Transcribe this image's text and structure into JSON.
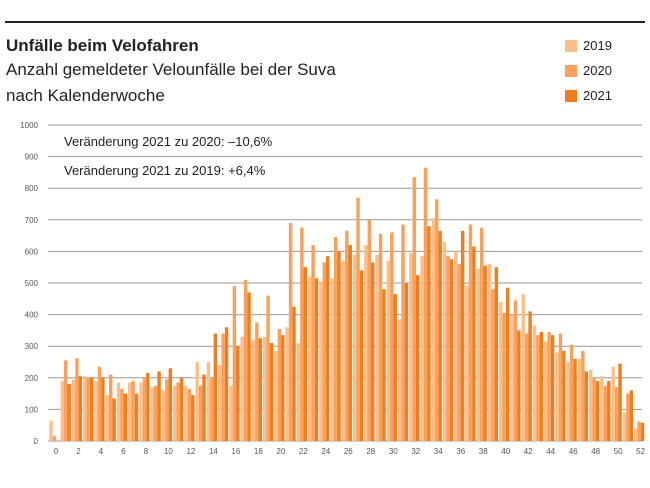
{
  "title": "Unfälle beim Velofahren",
  "subtitle1": "Anzahl gemeldeter Velounfälle bei der Suva",
  "subtitle2": "nach Kalenderwoche",
  "annotations": [
    "Veränderung 2021 zu 2020: –10,6%",
    "Veränderung 2021 zu 2019: +6,4%"
  ],
  "chart_data": {
    "type": "bar",
    "title": "Unfälle beim Velofahren",
    "xlabel": "Kalenderwoche",
    "ylabel": "Anzahl",
    "ylim": [
      0,
      1000
    ],
    "yticks": [
      0,
      100,
      200,
      300,
      400,
      500,
      600,
      700,
      800,
      900,
      1000
    ],
    "xticks": [
      0,
      2,
      4,
      6,
      8,
      10,
      12,
      14,
      16,
      18,
      20,
      22,
      24,
      26,
      28,
      30,
      32,
      34,
      36,
      38,
      40,
      42,
      44,
      46,
      48,
      50,
      52
    ],
    "grid": true,
    "legend": "top-right",
    "x": [
      0,
      1,
      2,
      3,
      4,
      5,
      6,
      7,
      8,
      9,
      10,
      11,
      12,
      13,
      14,
      15,
      16,
      17,
      18,
      19,
      20,
      21,
      22,
      23,
      24,
      25,
      26,
      27,
      28,
      29,
      30,
      31,
      32,
      33,
      34,
      35,
      36,
      37,
      38,
      39,
      40,
      41,
      42,
      43,
      44,
      45,
      46,
      47,
      48,
      49,
      50,
      51,
      52
    ],
    "series": [
      {
        "name": "2019",
        "color": "#fbbf8c",
        "values": [
          65,
          190,
          195,
          205,
          190,
          145,
          185,
          185,
          185,
          170,
          160,
          175,
          175,
          250,
          250,
          240,
          175,
          330,
          320,
          330,
          285,
          360,
          310,
          520,
          505,
          515,
          570,
          590,
          620,
          590,
          570,
          385,
          595,
          585,
          705,
          630,
          600,
          490,
          545,
          560,
          440,
          400,
          465,
          365,
          315,
          280,
          250,
          260,
          225,
          205,
          235,
          90,
          40
        ]
      },
      {
        "name": "2020",
        "color": "#f9a05a",
        "values": [
          15,
          255,
          262,
          200,
          235,
          210,
          165,
          190,
          200,
          175,
          195,
          185,
          165,
          175,
          200,
          340,
          490,
          510,
          375,
          460,
          355,
          690,
          675,
          620,
          565,
          645,
          665,
          770,
          700,
          655,
          660,
          685,
          835,
          865,
          765,
          585,
          560,
          685,
          675,
          480,
          405,
          445,
          340,
          335,
          345,
          340,
          305,
          285,
          200,
          175,
          170,
          150,
          62
        ]
      },
      {
        "name": "2021",
        "color": "#f07d1e",
        "values": [
          null,
          180,
          205,
          200,
          200,
          135,
          150,
          150,
          215,
          220,
          230,
          200,
          145,
          210,
          340,
          360,
          300,
          470,
          325,
          310,
          335,
          425,
          550,
          515,
          585,
          600,
          620,
          540,
          565,
          480,
          465,
          500,
          525,
          680,
          665,
          575,
          665,
          615,
          555,
          550,
          485,
          350,
          410,
          345,
          335,
          285,
          260,
          220,
          190,
          190,
          245,
          160,
          57
        ]
      }
    ]
  }
}
